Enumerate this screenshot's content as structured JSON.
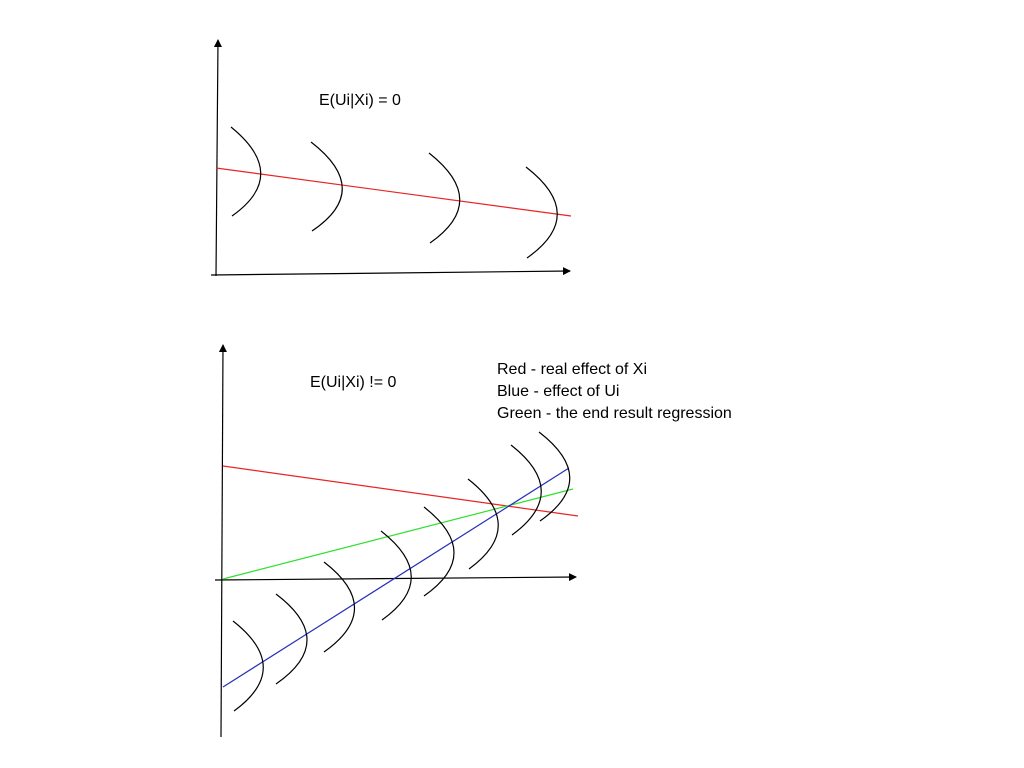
{
  "top_panel": {
    "label": "E(Ui|Xi) = 0"
  },
  "bottom_panel": {
    "label": "E(Ui|Xi) != 0"
  },
  "legend": {
    "lines": [
      "Red - real effect of Xi",
      "Blue - effect of Ui",
      "Green - the end result regression"
    ]
  },
  "colors": {
    "axis": "#000000",
    "real_effect_xi": "#e82525",
    "effect_ui": "#2631b8",
    "end_result_regression": "#2ee02e",
    "distribution_curve": "#000000"
  }
}
